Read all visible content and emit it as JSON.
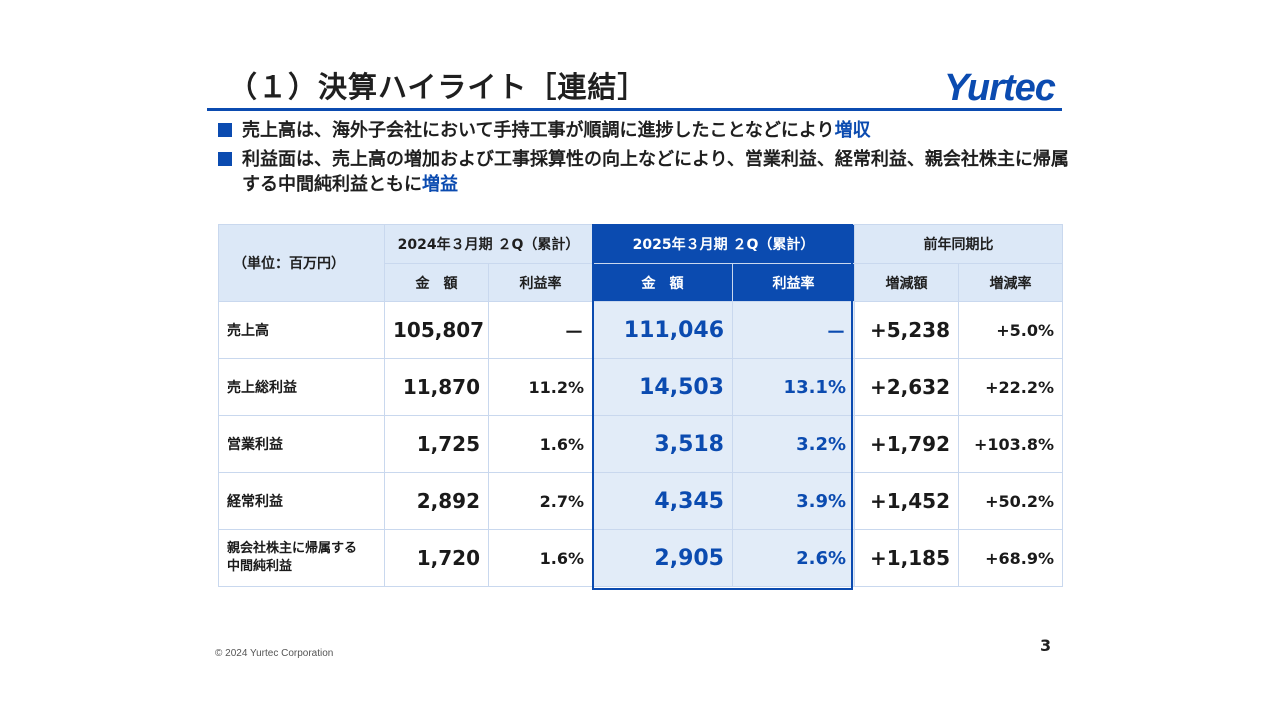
{
  "title": "（１）決算ハイライト［連結］",
  "logo_text": "Yurtec",
  "bullets": [
    {
      "text": "売上高は、海外子会社において手持工事が順調に進捗したことなどにより",
      "highlight": "増収"
    },
    {
      "text": "利益面は、売上高の増加および工事採算性の向上などにより、営業利益、経常利益、親会社株主に帰属する中間純利益ともに",
      "highlight": "増益"
    }
  ],
  "table": {
    "unit_label": "（単位：百万円）",
    "groups": [
      "2024年３月期 ２Q（累計）",
      "2025年３月期 ２Q（累計）",
      "前年同期比"
    ],
    "subheaders": [
      "金　額",
      "利益率",
      "金　額",
      "利益率",
      "増減額",
      "増減率"
    ],
    "rows": [
      {
        "label": "売上高",
        "prev_amount": "105,807",
        "prev_rate": "－",
        "cur_amount": "111,046",
        "cur_rate": "－",
        "diff_amount": "+5,238",
        "diff_rate": "+5.0%"
      },
      {
        "label": "売上総利益",
        "prev_amount": "11,870",
        "prev_rate": "11.2%",
        "cur_amount": "14,503",
        "cur_rate": "13.1%",
        "diff_amount": "+2,632",
        "diff_rate": "+22.2%"
      },
      {
        "label": "営業利益",
        "prev_amount": "1,725",
        "prev_rate": "1.6%",
        "cur_amount": "3,518",
        "cur_rate": "3.2%",
        "diff_amount": "+1,792",
        "diff_rate": "+103.8%"
      },
      {
        "label": "経常利益",
        "prev_amount": "2,892",
        "prev_rate": "2.7%",
        "cur_amount": "4,345",
        "cur_rate": "3.9%",
        "diff_amount": "+1,452",
        "diff_rate": "+50.2%"
      },
      {
        "label_line1": "親会社株主に帰属する",
        "label_line2": "中間純利益",
        "prev_amount": "1,720",
        "prev_rate": "1.6%",
        "cur_amount": "2,905",
        "cur_rate": "2.6%",
        "diff_amount": "+1,185",
        "diff_rate": "+68.9%"
      }
    ]
  },
  "footer": {
    "copyright": "© 2024 Yurtec Corporation",
    "page_number": "3"
  },
  "colors": {
    "accent": "#0b4bb0",
    "header_light": "#dce8f7",
    "current_bg": "#e2ecf8"
  }
}
